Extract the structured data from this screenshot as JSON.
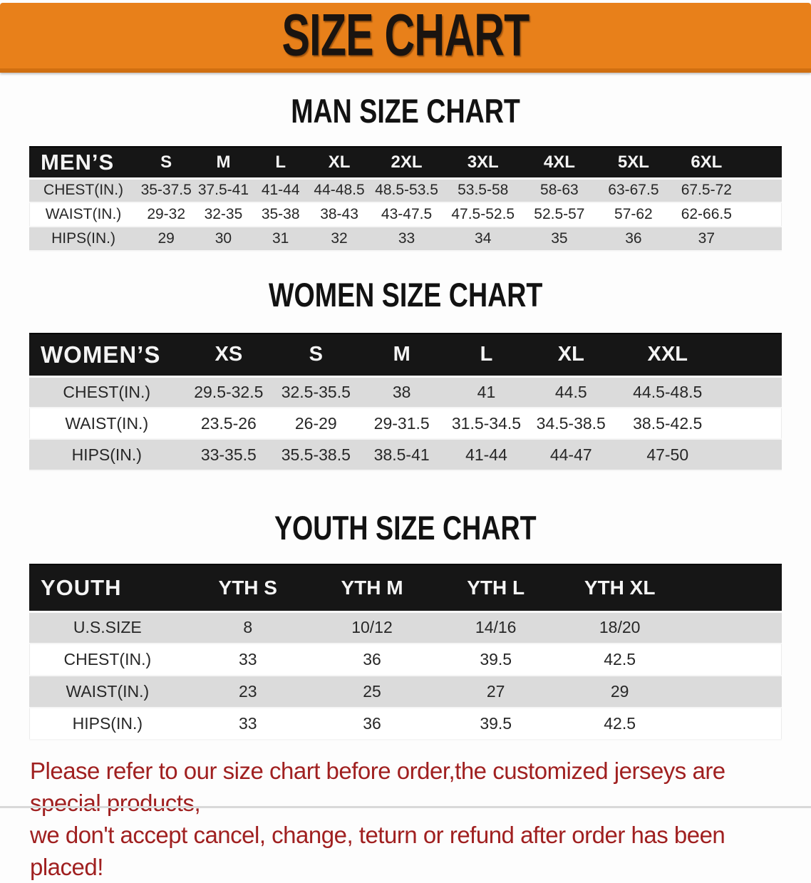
{
  "banner": {
    "title": "SIZE CHART"
  },
  "colors": {
    "banner_orange": "#E8801A",
    "banner_edge": "#D06F10",
    "header_black": "#161616",
    "row_gray": "#DBDBDB",
    "row_white": "#FFFFFF",
    "disclaimer_red": "#A02020"
  },
  "men": {
    "heading": "MAN SIZE CHART",
    "table": {
      "header": [
        "MEN’S",
        "S",
        "M",
        "L",
        "XL",
        "2XL",
        "3XL",
        "4XL",
        "5XL",
        "6XL"
      ],
      "rows": [
        [
          "CHEST(IN.)",
          "35-37.5",
          "37.5-41",
          "41-44",
          "44-48.5",
          "48.5-53.5",
          "53.5-58",
          "58-63",
          "63-67.5",
          "67.5-72"
        ],
        [
          "WAIST(IN.)",
          "29-32",
          "32-35",
          "35-38",
          "38-43",
          "43-47.5",
          "47.5-52.5",
          "52.5-57",
          "57-62",
          "62-66.5"
        ],
        [
          "HIPS(IN.)",
          "29",
          "30",
          "31",
          "32",
          "33",
          "34",
          "35",
          "36",
          "37"
        ]
      ]
    }
  },
  "women": {
    "heading": "WOMEN SIZE CHART",
    "table": {
      "header": [
        "WOMEN’S",
        "XS",
        "S",
        "M",
        "L",
        "XL",
        "XXL"
      ],
      "rows": [
        [
          "CHEST(IN.)",
          "29.5-32.5",
          "32.5-35.5",
          "38",
          "41",
          "44.5",
          "44.5-48.5"
        ],
        [
          "WAIST(IN.)",
          "23.5-26",
          "26-29",
          "29-31.5",
          "31.5-34.5",
          "34.5-38.5",
          "38.5-42.5"
        ],
        [
          "HIPS(IN.)",
          "33-35.5",
          "35.5-38.5",
          "38.5-41",
          "41-44",
          "44-47",
          "47-50"
        ]
      ]
    }
  },
  "youth": {
    "heading": "YOUTH SIZE CHART",
    "table": {
      "header": [
        "YOUTH",
        "YTH S",
        "YTH M",
        "YTH L",
        "YTH XL"
      ],
      "rows": [
        [
          "U.S.SIZE",
          "8",
          "10/12",
          "14/16",
          "18/20"
        ],
        [
          "CHEST(IN.)",
          "33",
          "36",
          "39.5",
          "42.5"
        ],
        [
          "WAIST(IN.)",
          "23",
          "25",
          "27",
          "29"
        ],
        [
          "HIPS(IN.)",
          "33",
          "36",
          "39.5",
          "42.5"
        ]
      ]
    }
  },
  "disclaimer": {
    "line1": "Please refer to our size chart before order,the customized jerseys are special products,",
    "line2": "we don't accept cancel, change, teturn or refund after order has been placed!"
  }
}
